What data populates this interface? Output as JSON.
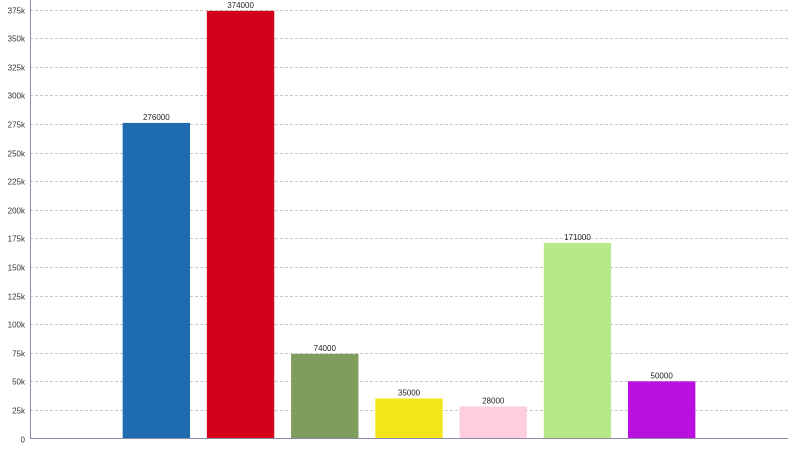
{
  "chart_data": {
    "type": "bar",
    "title": "",
    "xlabel": "",
    "ylabel": "",
    "categories": [
      "",
      "",
      "",
      "",
      "",
      "",
      "",
      "",
      ""
    ],
    "values": [
      null,
      276000,
      374000,
      74000,
      35000,
      28000,
      171000,
      50000,
      null
    ],
    "data_labels": [
      "",
      "276000",
      "374000",
      "74000",
      "35000",
      "28000",
      "171000",
      "50000",
      ""
    ],
    "colors": [
      "#ffffff",
      "#1f6bb0",
      "#d3021c",
      "#7f9e5e",
      "#f2e51a",
      "#fccee0",
      "#b7e88a",
      "#b90fdf",
      "#ffffff"
    ],
    "ylim": [
      0,
      380000
    ],
    "yticks": [
      0,
      25000,
      50000,
      75000,
      100000,
      125000,
      150000,
      175000,
      200000,
      225000,
      250000,
      275000,
      300000,
      325000,
      350000,
      375000
    ],
    "ytick_labels": [
      "0",
      "25k",
      "50k",
      "75k",
      "100k",
      "125k",
      "150k",
      "175k",
      "200k",
      "225k",
      "250k",
      "275k",
      "300k",
      "325k",
      "350k",
      "375k"
    ],
    "grid": true,
    "gridline_color": "#c8c8c8",
    "axis_color": "#8a8aa8",
    "legend": "none"
  }
}
